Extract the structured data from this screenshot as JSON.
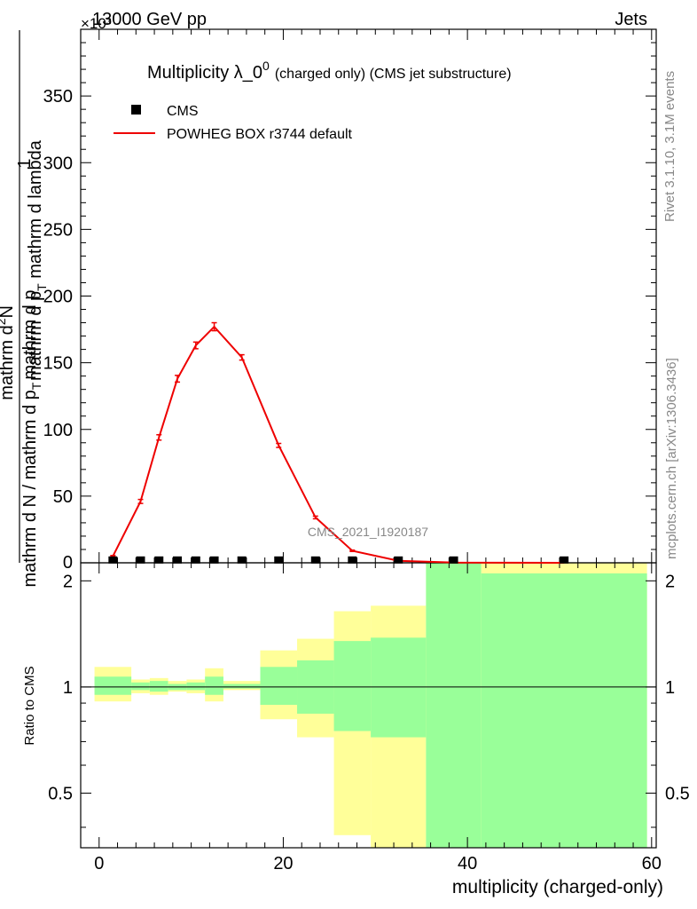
{
  "header": {
    "left": "13000 GeV pp",
    "right": "Jets",
    "exponent": "×10³"
  },
  "side": {
    "rivet": "Rivet 3.1.10,  3.1M events",
    "mcplots": "mcplots.cern.ch [arXiv:1306.3436]"
  },
  "watermark": "CMS_2021_I1920187",
  "chart_data": {
    "type": "line",
    "title_main": "Multiplicity λ_0",
    "title_sup": "0",
    "title_sub": "(charged only) (CMS jet substructure)",
    "ylabel": {
      "frac_top": "1",
      "frac_bottom": "mathrm d N / mathrm d p",
      "frac_bottom_sub": "T",
      "frac_bottom_tail": "mathrm d p",
      "right_top": "mathrm d",
      "right_top_sup": "2",
      "right_top_tail": "N",
      "right_bottom": "mathrm d p",
      "right_bottom_sub": "T",
      "right_bottom_tail": " mathrm d lambda"
    },
    "xlabel": "multiplicity (charged-only)",
    "ratio_ylabel": "Ratio to CMS",
    "xlim": [
      -2,
      60.5
    ],
    "ylim": [
      0,
      400
    ],
    "ratio_ylim": [
      0.35,
      2.25
    ],
    "x_ticks": [
      0,
      20,
      40,
      60
    ],
    "y_ticks": [
      50,
      100,
      150,
      200,
      250,
      300,
      350
    ],
    "y_tick_zero": "0",
    "ratio_ticks": [
      0.5,
      1,
      2
    ],
    "legend": [
      {
        "label": "CMS",
        "marker": "square",
        "color": "#000000"
      },
      {
        "label": "POWHEG BOX r3744 default",
        "marker": "line",
        "color": "#ee0000"
      }
    ],
    "series": [
      {
        "name": "POWHEG BOX r3744 default",
        "color": "#ee0000",
        "x": [
          1.5,
          4.5,
          6.5,
          8.5,
          10.5,
          12.5,
          15.5,
          19.5,
          23.5,
          27.5,
          32.5,
          38.5,
          50.5
        ],
        "y": [
          5,
          46,
          94,
          138,
          163,
          177,
          154,
          88,
          34,
          9,
          1.5,
          0.2,
          0
        ],
        "err": [
          0.5,
          1.5,
          2,
          2.5,
          2.5,
          3,
          2,
          1.5,
          1,
          0.5,
          0.2,
          0.1,
          0
        ]
      },
      {
        "name": "CMS",
        "color": "#000000",
        "x": [
          1.5,
          4.5,
          6.5,
          8.5,
          10.5,
          12.5,
          15.5,
          19.5,
          23.5,
          27.5,
          32.5,
          38.5,
          50.5
        ],
        "y": [
          0.8,
          0.8,
          0.8,
          0.8,
          0.8,
          0.8,
          0.8,
          0.8,
          0.8,
          0.8,
          0.8,
          0.8,
          0.8
        ]
      }
    ],
    "ratio_bands": [
      {
        "x0": -0.5,
        "x1": 3.5,
        "yellow": [
          0.91,
          1.14
        ],
        "green": [
          0.95,
          1.07
        ]
      },
      {
        "x0": 3.5,
        "x1": 5.5,
        "yellow": [
          0.96,
          1.05
        ],
        "green": [
          0.98,
          1.03
        ]
      },
      {
        "x0": 5.5,
        "x1": 7.5,
        "yellow": [
          0.95,
          1.06
        ],
        "green": [
          0.97,
          1.04
        ]
      },
      {
        "x0": 7.5,
        "x1": 9.5,
        "yellow": [
          0.97,
          1.04
        ],
        "green": [
          0.98,
          1.02
        ]
      },
      {
        "x0": 9.5,
        "x1": 11.5,
        "yellow": [
          0.96,
          1.05
        ],
        "green": [
          0.98,
          1.03
        ]
      },
      {
        "x0": 11.5,
        "x1": 13.5,
        "yellow": [
          0.91,
          1.13
        ],
        "green": [
          0.95,
          1.07
        ]
      },
      {
        "x0": 13.5,
        "x1": 17.5,
        "yellow": [
          0.98,
          1.04
        ],
        "green": [
          0.99,
          1.02
        ]
      },
      {
        "x0": 17.5,
        "x1": 21.5,
        "yellow": [
          0.81,
          1.27
        ],
        "green": [
          0.89,
          1.14
        ]
      },
      {
        "x0": 21.5,
        "x1": 25.5,
        "yellow": [
          0.72,
          1.37
        ],
        "green": [
          0.84,
          1.19
        ]
      },
      {
        "x0": 25.5,
        "x1": 29.5,
        "yellow": [
          0.38,
          1.64
        ],
        "green": [
          0.75,
          1.35
        ]
      },
      {
        "x0": 29.5,
        "x1": 35.5,
        "yellow": [
          0.35,
          1.7
        ],
        "green": [
          0.72,
          1.38
        ]
      },
      {
        "x0": 35.5,
        "x1": 41.5,
        "yellow": [
          0.35,
          2.25
        ],
        "green": [
          0.35,
          2.25
        ]
      },
      {
        "x0": 41.5,
        "x1": 59.5,
        "yellow": [
          0.35,
          2.25
        ],
        "green": [
          0.35,
          2.1
        ]
      }
    ]
  }
}
